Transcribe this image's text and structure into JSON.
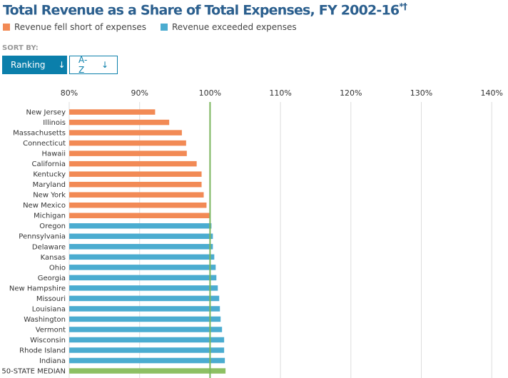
{
  "title": "Total Revenue as a Share of Total Expenses, FY 2002-16",
  "title_marks": "*†",
  "legend": [
    {
      "label": "Revenue fell short of expenses",
      "color": "#f28a55"
    },
    {
      "label": "Revenue exceeded expenses",
      "color": "#4bacd0"
    }
  ],
  "sort": {
    "label": "SORT BY:",
    "buttons": [
      {
        "label": "Ranking",
        "icon": "arrow-down-icon",
        "active": true
      },
      {
        "label": "A-Z",
        "icon": "arrow-down-icon",
        "active": false
      }
    ]
  },
  "chart_data": {
    "type": "bar",
    "orientation": "horizontal",
    "xlim": [
      80,
      140
    ],
    "xticks": [
      80,
      90,
      100,
      110,
      120,
      130,
      140
    ],
    "tick_suffix": "%",
    "reference_line": 100,
    "reference_color": "#7ab55c",
    "grid": true,
    "colors": {
      "short": "#f28a55",
      "exceeded": "#4bacd0",
      "median": "#8dc063"
    },
    "categories": [
      "New Jersey",
      "Illinois",
      "Massachusetts",
      "Connecticut",
      "Hawaii",
      "California",
      "Kentucky",
      "Maryland",
      "New York",
      "New Mexico",
      "Michigan",
      "Oregon",
      "Pennsylvania",
      "Delaware",
      "Kansas",
      "Ohio",
      "Georgia",
      "New Hampshire",
      "Missouri",
      "Louisiana",
      "Washington",
      "Vermont",
      "Wisconsin",
      "Rhode Island",
      "Indiana",
      "50-STATE MEDIAN"
    ],
    "values": [
      92.2,
      94.2,
      96.0,
      96.6,
      96.7,
      98.1,
      98.8,
      98.8,
      99.1,
      99.5,
      99.9,
      100.2,
      100.4,
      100.4,
      100.6,
      100.8,
      100.9,
      101.1,
      101.3,
      101.4,
      101.5,
      101.7,
      102.0,
      102.0,
      102.1,
      102.2
    ]
  }
}
